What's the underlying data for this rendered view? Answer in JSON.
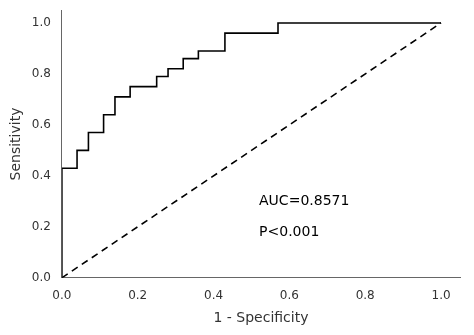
{
  "chart_data": {
    "type": "line",
    "xlabel": "1 - Specificity",
    "ylabel": "Sensitivity",
    "series": [
      {
        "x": [
          0.0,
          0.0,
          0.04,
          0.04,
          0.07,
          0.07,
          0.11,
          0.11,
          0.14,
          0.14,
          0.18,
          0.18,
          0.21,
          0.21,
          0.25,
          0.25,
          0.28,
          0.28,
          0.32,
          0.32,
          0.36,
          0.36,
          0.39,
          0.39,
          0.43,
          0.43,
          0.57,
          0.57,
          1.0
        ],
        "values": [
          0.0,
          0.43,
          0.43,
          0.5,
          0.5,
          0.57,
          0.57,
          0.64,
          0.64,
          0.71,
          0.71,
          0.75,
          0.75,
          0.75,
          0.75,
          0.79,
          0.79,
          0.82,
          0.82,
          0.86,
          0.86,
          0.89,
          0.89,
          0.89,
          0.89,
          0.96,
          0.96,
          1.0,
          1.0
        ],
        "color": "#000000",
        "line_style": "solid"
      },
      {
        "x": [
          0.0,
          1.0
        ],
        "values": [
          0.0,
          1.0
        ],
        "color": "#000000",
        "line_style": "dashed"
      }
    ],
    "xlim": [
      0.0,
      1.05
    ],
    "ylim": [
      0.0,
      1.05
    ],
    "xticks": [
      {
        "value": 0.0,
        "label": "0.0"
      },
      0.2,
      0.4,
      0.6,
      0.8,
      {
        "value": 1.0,
        "label": "1.0"
      }
    ],
    "yticks": [
      {
        "value": 0.0,
        "label": "0.0"
      },
      0.2,
      0.4,
      0.6,
      0.8,
      {
        "value": 1.0,
        "label": "1.0"
      }
    ],
    "annotations": [
      {
        "text": "AUC=0.8571",
        "x": 0.52,
        "y": 0.3
      },
      {
        "text": "P<0.001",
        "x": 0.52,
        "y": 0.18
      }
    ],
    "grid": false,
    "legend": false
  }
}
